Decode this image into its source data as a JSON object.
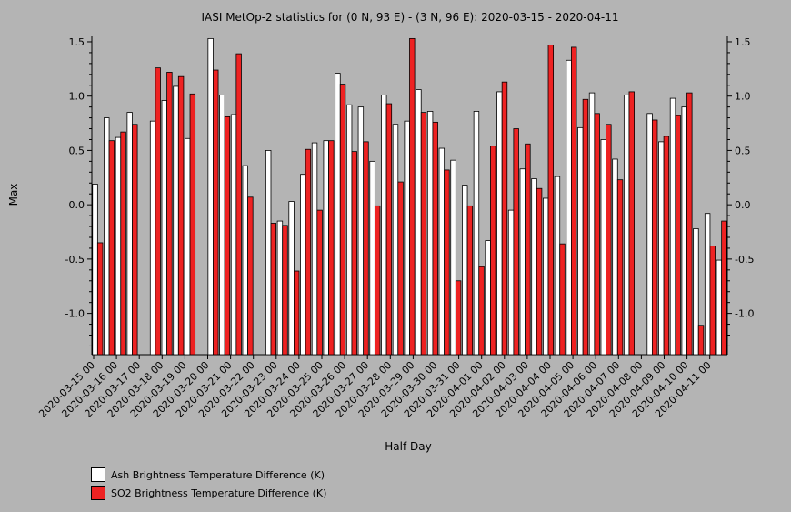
{
  "chart_data": {
    "type": "bar",
    "title": "IASI MetOp-2 statistics for (0 N, 93 E) - (3 N, 96 E): 2020-03-15 - 2020-04-11",
    "xlabel": "Half Day",
    "ylabel": "Max",
    "ylim": [
      -1.38,
      1.55
    ],
    "yticks": [
      1.5,
      1.0,
      0.5,
      0.0,
      -0.5,
      -1.0
    ],
    "ytick_labels": [
      "1.5",
      "1.0",
      "0.5",
      "0.0",
      "-0.5",
      "-1.0"
    ],
    "x_tick_labels": [
      "2020-03-15 00",
      "2020-03-16 00",
      "2020-03-17 00",
      "2020-03-18 00",
      "2020-03-19 00",
      "2020-03-20 00",
      "2020-03-21 00",
      "2020-03-22 00",
      "2020-03-23 00",
      "2020-03-24 00",
      "2020-03-25 00",
      "2020-03-26 00",
      "2020-03-27 00",
      "2020-03-28 00",
      "2020-03-29 00",
      "2020-03-30 00",
      "2020-03-31 00",
      "2020-04-01 00",
      "2020-04-02 00",
      "2020-04-03 00",
      "2020-04-04 00",
      "2020-04-05 00",
      "2020-04-06 00",
      "2020-04-07 00",
      "2020-04-08 00",
      "2020-04-09 00",
      "2020-04-10 00",
      "2020-04-11 00"
    ],
    "legend_position": "bottom-left",
    "series": [
      {
        "name": "Ash Brightness Temperature Difference (K)",
        "color": "#ffffff",
        "values": [
          0.19,
          0.8,
          0.62,
          0.85,
          null,
          0.77,
          0.96,
          1.09,
          0.61,
          null,
          1.53,
          1.01,
          0.83,
          0.36,
          null,
          0.5,
          -0.15,
          0.03,
          0.28,
          0.57,
          0.59,
          1.21,
          0.92,
          0.9,
          0.4,
          1.01,
          0.74,
          0.77,
          1.06,
          0.86,
          0.52,
          0.41,
          0.18,
          0.86,
          -0.33,
          1.04,
          -0.05,
          0.33,
          0.24,
          0.06,
          0.26,
          1.33,
          0.71,
          1.03,
          0.6,
          0.42,
          1.01,
          null,
          0.84,
          0.58,
          0.98,
          0.9,
          -0.22,
          -0.08,
          -0.51
        ]
      },
      {
        "name": "SO2 Brightness Temperature Difference (K)",
        "color": "#ee2222",
        "values": [
          -0.35,
          0.59,
          0.67,
          0.74,
          null,
          1.26,
          1.22,
          1.18,
          1.02,
          null,
          1.24,
          0.81,
          1.39,
          0.07,
          null,
          -0.17,
          -0.19,
          -0.61,
          0.51,
          -0.05,
          0.59,
          1.11,
          0.49,
          0.58,
          -0.01,
          0.93,
          0.21,
          1.53,
          0.85,
          0.76,
          0.32,
          -0.7,
          -0.01,
          -0.57,
          0.54,
          1.13,
          0.7,
          0.56,
          0.15,
          1.47,
          -0.36,
          1.45,
          0.97,
          0.84,
          0.74,
          0.23,
          1.04,
          null,
          0.78,
          0.63,
          0.82,
          1.03,
          -1.11,
          -0.38,
          -0.15
        ]
      }
    ]
  }
}
